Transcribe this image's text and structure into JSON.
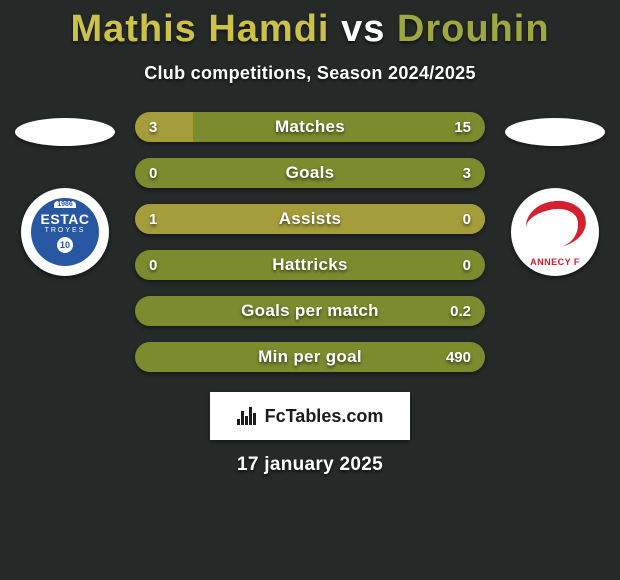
{
  "title": {
    "player1": "Mathis Hamdi",
    "vs": "vs",
    "player2": "Drouhin"
  },
  "subtitle": "Club competitions, Season 2024/2025",
  "colors": {
    "player1": "#a59d3c",
    "player2": "#7d8b2f",
    "title_p1": "#ccc24a",
    "title_vs": "#ffffff",
    "title_p2": "#9fa83e",
    "background": "#252928"
  },
  "left_club": {
    "name": "ESTAC",
    "sub": "TROYES",
    "year": "1986",
    "num": "10",
    "badge_bg": "#2757a3"
  },
  "right_club": {
    "name": "ANNECY F",
    "accent": "#d4202f"
  },
  "stats": [
    {
      "label": "Matches",
      "left_val": "3",
      "right_val": "15",
      "left_pct": 16.7
    },
    {
      "label": "Goals",
      "left_val": "0",
      "right_val": "3",
      "left_pct": 0
    },
    {
      "label": "Assists",
      "left_val": "1",
      "right_val": "0",
      "left_pct": 100
    },
    {
      "label": "Hattricks",
      "left_val": "0",
      "right_val": "0",
      "left_pct": 0
    },
    {
      "label": "Goals per match",
      "left_val": "",
      "right_val": "0.2",
      "left_pct": 0
    },
    {
      "label": "Min per goal",
      "left_val": "",
      "right_val": "490",
      "left_pct": 0
    }
  ],
  "watermark": "FcTables.com",
  "date": "17 january 2025"
}
